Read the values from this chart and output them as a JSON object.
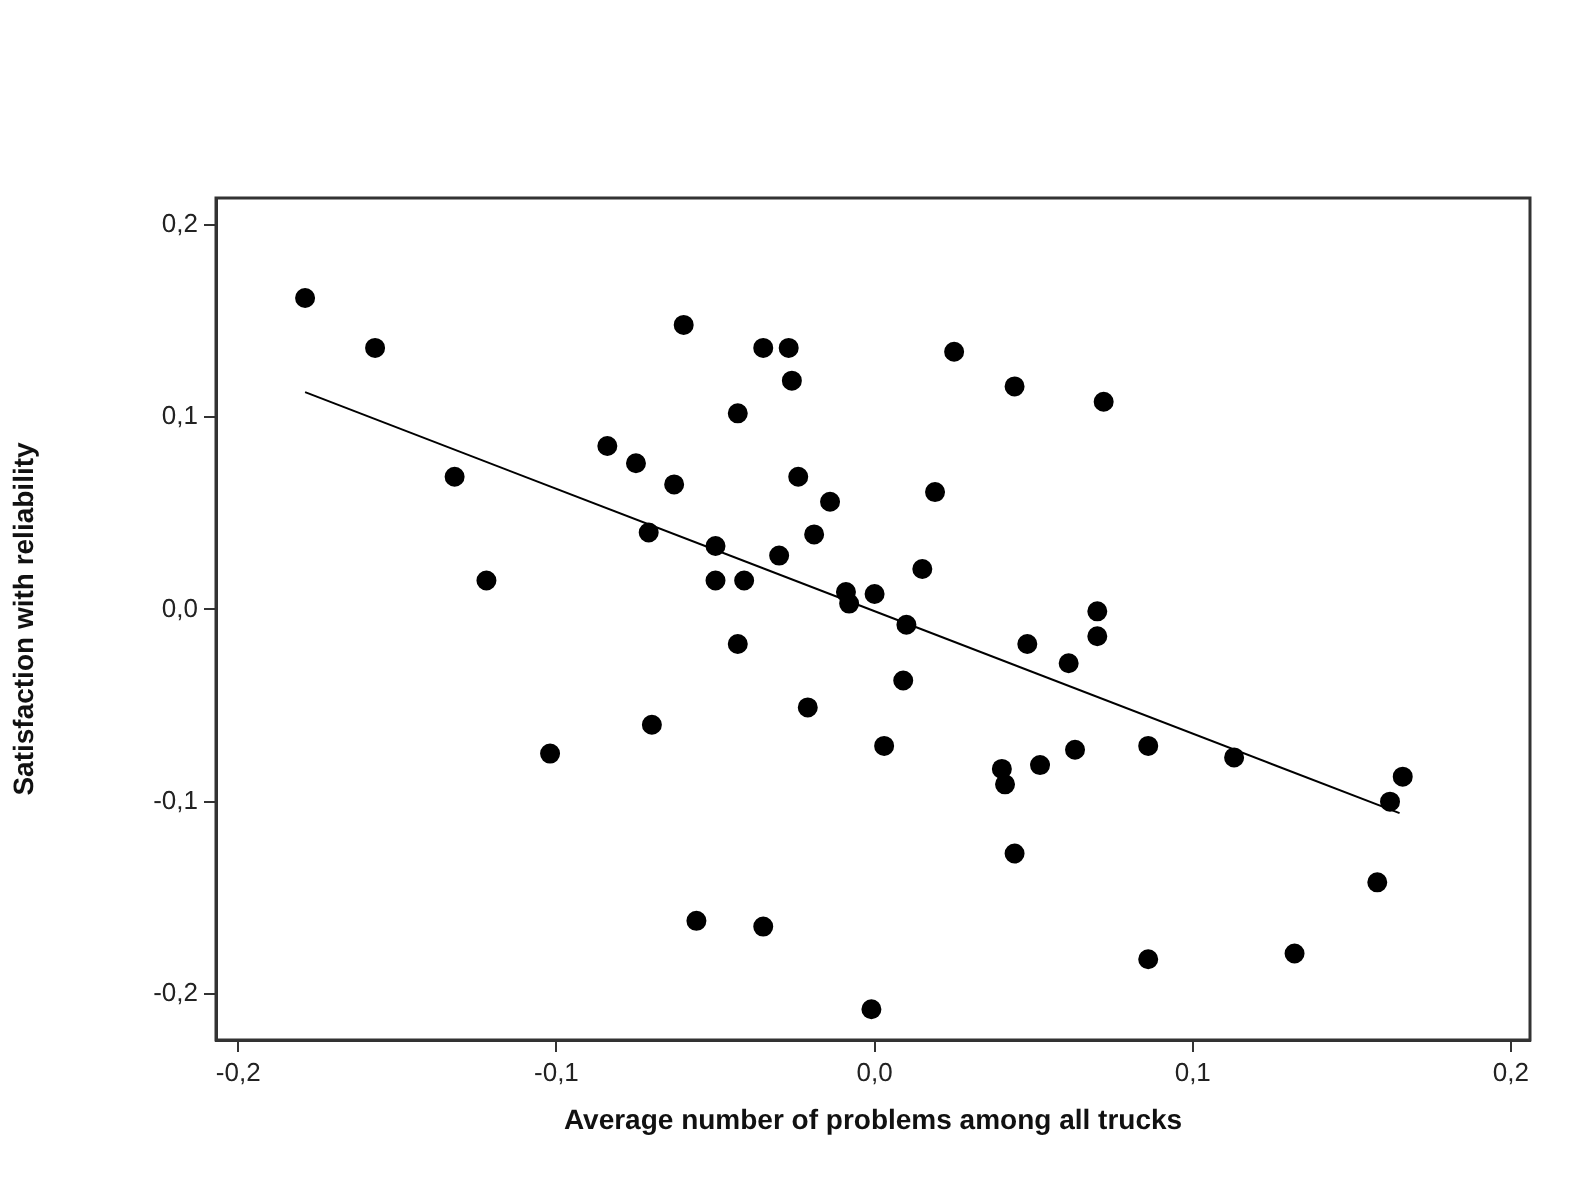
{
  "chart_data": {
    "type": "scatter",
    "xlabel": "Average number of problems among all trucks",
    "ylabel": "Satisfaction with reliability",
    "xlim": [
      -0.207,
      0.206
    ],
    "ylim": [
      -0.224,
      0.214
    ],
    "xticks": [
      {
        "value": -0.2,
        "label": "-0,2"
      },
      {
        "value": -0.1,
        "label": "-0,1"
      },
      {
        "value": 0,
        "label": "0,0"
      },
      {
        "value": 0.1,
        "label": "0,1"
      },
      {
        "value": 0.2,
        "label": "0,2"
      }
    ],
    "yticks": [
      {
        "value": -0.2,
        "label": "-0,2"
      },
      {
        "value": -0.1,
        "label": "-0,1"
      },
      {
        "value": 0,
        "label": "0,0"
      },
      {
        "value": 0.1,
        "label": "0,1"
      },
      {
        "value": 0.2,
        "label": "0,2"
      }
    ],
    "grid": false,
    "legend": false,
    "series": [
      {
        "type": "scatter",
        "color": "#000000",
        "marker": "circle",
        "x": [
          -0.179,
          -0.157,
          -0.132,
          -0.122,
          -0.06,
          -0.084,
          -0.075,
          -0.063,
          -0.071,
          -0.035,
          -0.027,
          -0.026,
          -0.043,
          -0.024,
          -0.014,
          -0.019,
          -0.05,
          -0.03,
          -0.05,
          -0.041,
          -0.009,
          -0.008,
          0.0,
          0.025,
          0.044,
          0.072,
          0.019,
          0.015,
          0.07,
          0.01,
          -0.043,
          -0.07,
          -0.021,
          -0.102,
          0.003,
          -0.056,
          -0.035,
          -0.001,
          0.07,
          0.048,
          0.061,
          0.009,
          0.04,
          0.041,
          0.052,
          0.063,
          0.086,
          0.113,
          0.166,
          0.162,
          0.044,
          0.158,
          0.086,
          0.132
        ],
        "values": [
          0.162,
          0.136,
          0.069,
          0.015,
          0.148,
          0.085,
          0.076,
          0.065,
          0.04,
          0.136,
          0.136,
          0.119,
          0.102,
          0.069,
          0.056,
          0.039,
          0.033,
          0.028,
          0.015,
          0.015,
          0.009,
          0.003,
          0.008,
          0.134,
          0.116,
          0.108,
          0.061,
          0.021,
          -0.001,
          -0.008,
          -0.018,
          -0.06,
          -0.051,
          -0.075,
          -0.071,
          -0.162,
          -0.165,
          -0.208,
          -0.014,
          -0.018,
          -0.028,
          -0.037,
          -0.083,
          -0.091,
          -0.081,
          -0.073,
          -0.071,
          -0.077,
          -0.087,
          -0.1,
          -0.127,
          -0.142,
          -0.182,
          -0.179
        ]
      },
      {
        "type": "line",
        "color": "#000000",
        "marker": "none",
        "line_style": "solid",
        "x": [
          -0.179,
          0.165
        ],
        "values": [
          0.113,
          -0.106
        ]
      }
    ]
  }
}
